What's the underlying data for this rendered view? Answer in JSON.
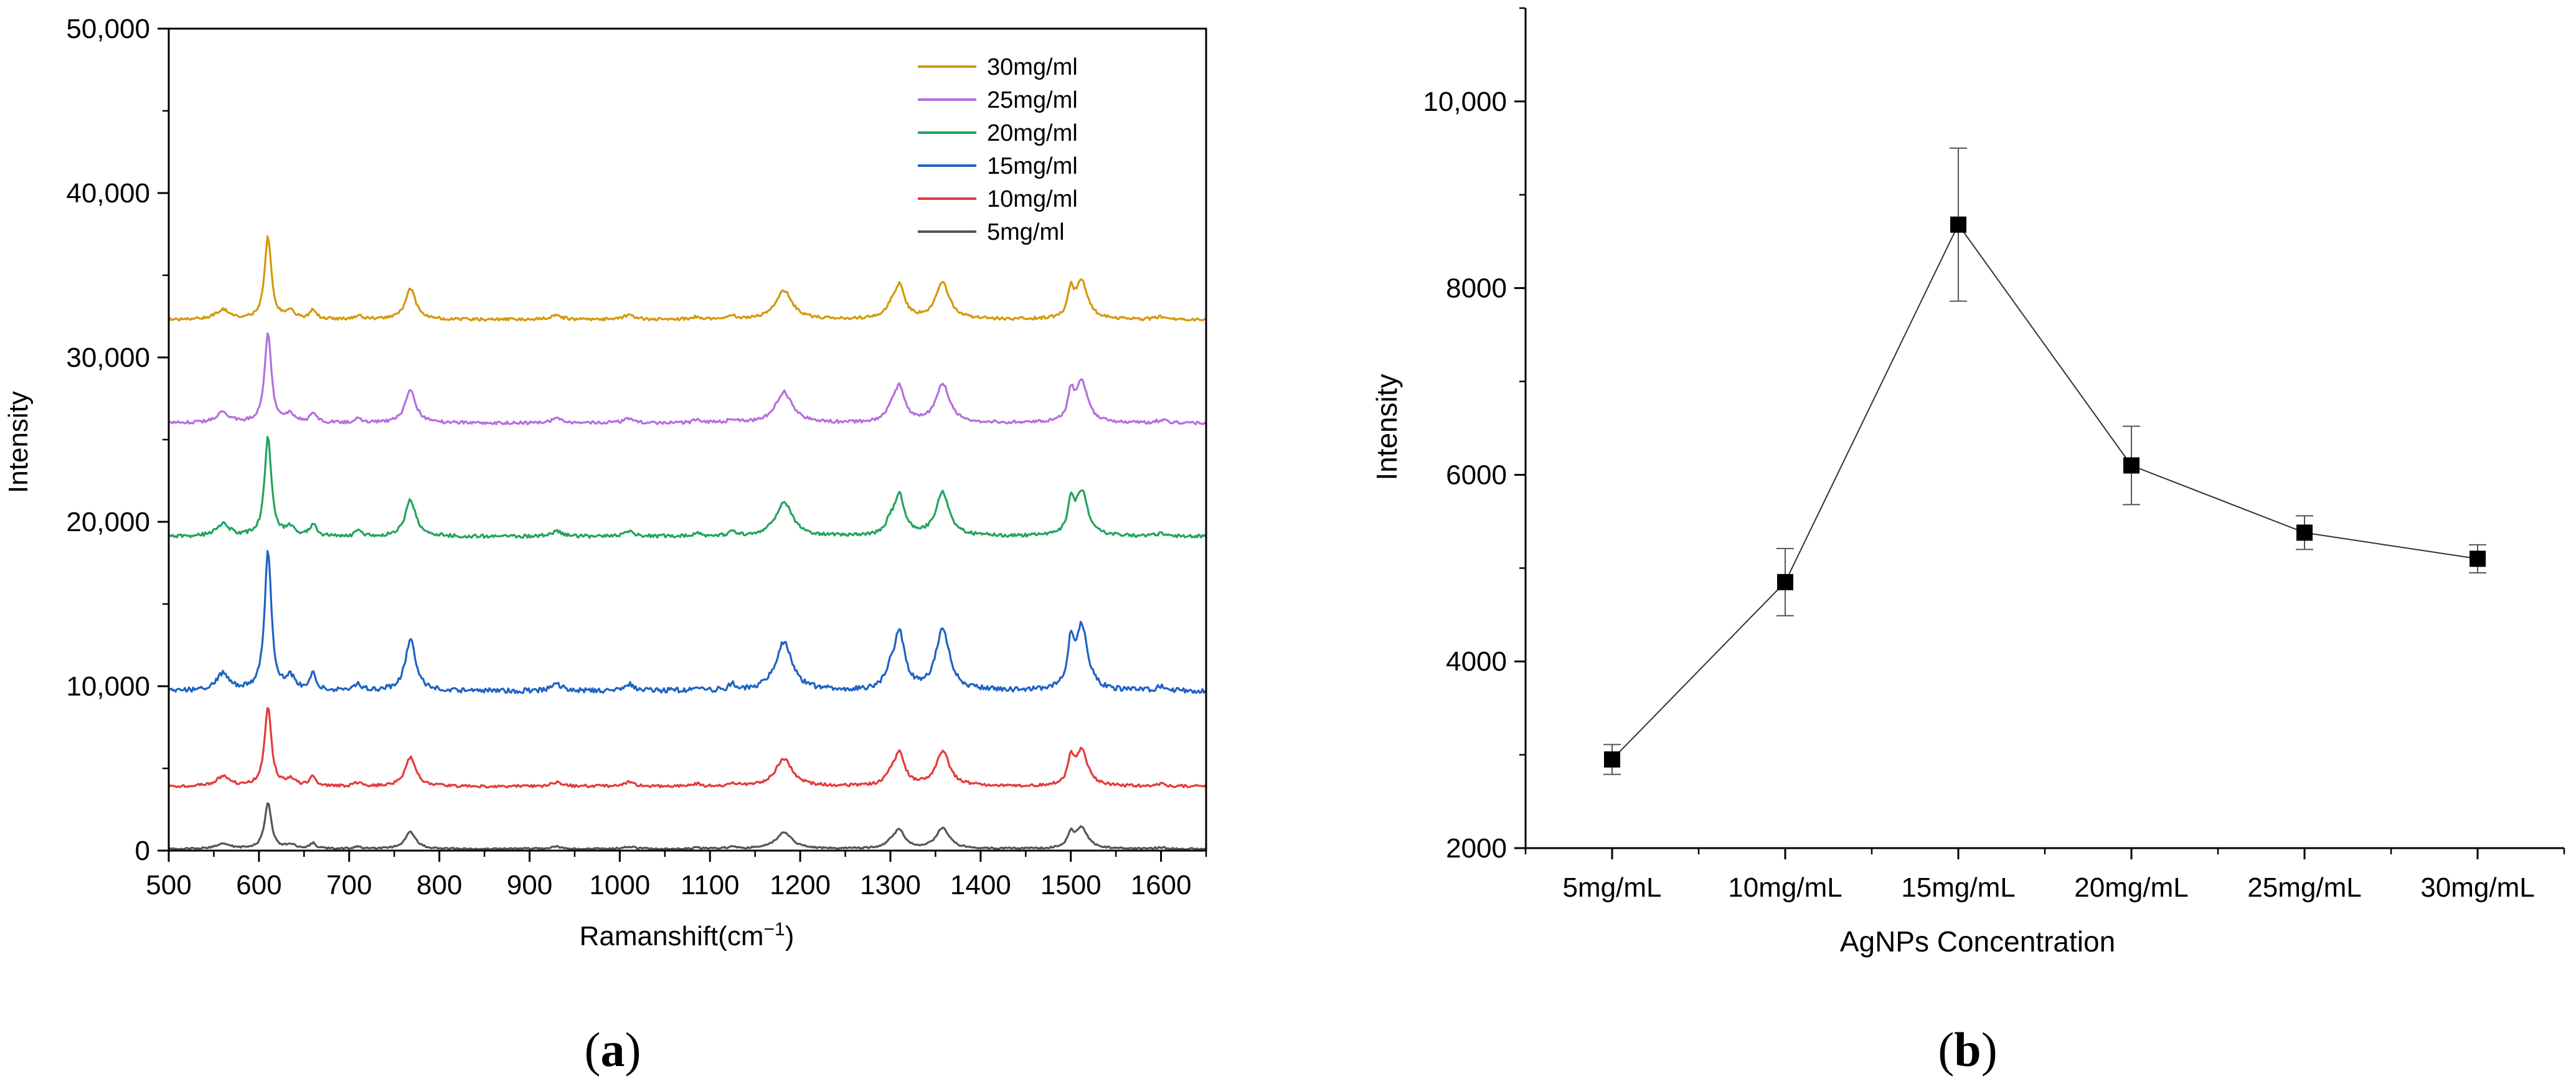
{
  "chart_data": [
    {
      "type": "line",
      "panel_label": "a",
      "title": "",
      "xlabel": "Ramanshift(cm",
      "xlabel_sup": "−1",
      "xlabel_close": ")",
      "ylabel": "Intensity",
      "xlim": [
        500,
        1650
      ],
      "ylim": [
        0,
        50000
      ],
      "x_ticks": [
        "500",
        "600",
        "700",
        "800",
        "900",
        "1000",
        "1100",
        "1200",
        "1300",
        "1400",
        "1500",
        "1600"
      ],
      "y_ticks": [
        "0",
        "10,000",
        "20,000",
        "30,000",
        "40,000",
        "50,000"
      ],
      "legend_position": "top-right",
      "peaks": [
        {
          "pos": 560,
          "w": 9,
          "h": 0.12
        },
        {
          "pos": 610,
          "w": 4.5,
          "h": 1.0
        },
        {
          "pos": 635,
          "w": 6,
          "h": 0.09
        },
        {
          "pos": 660,
          "w": 4,
          "h": 0.12
        },
        {
          "pos": 710,
          "w": 4,
          "h": 0.05
        },
        {
          "pos": 768,
          "w": 7,
          "h": 0.37
        },
        {
          "pos": 930,
          "w": 7,
          "h": 0.05
        },
        {
          "pos": 1010,
          "w": 7,
          "h": 0.05
        },
        {
          "pos": 1085,
          "w": 5,
          "h": 0.03
        },
        {
          "pos": 1125,
          "w": 5,
          "h": 0.04
        },
        {
          "pos": 1182,
          "w": 11,
          "h": 0.35
        },
        {
          "pos": 1300,
          "w": 6,
          "h": 0.1
        },
        {
          "pos": 1310,
          "w": 7,
          "h": 0.4
        },
        {
          "pos": 1358,
          "w": 9,
          "h": 0.44
        },
        {
          "pos": 1500,
          "w": 4,
          "h": 0.3
        },
        {
          "pos": 1512,
          "w": 8,
          "h": 0.45
        },
        {
          "pos": 1600,
          "w": 6,
          "h": 0.03
        }
      ],
      "series": [
        {
          "name": "30mg/ml",
          "color": "#D4990B",
          "baseline": 32300,
          "peak_height": 5000
        },
        {
          "name": "25mg/ml",
          "color": "#B56EE0",
          "baseline": 26000,
          "peak_height": 5400
        },
        {
          "name": "20mg/ml",
          "color": "#22A45D",
          "baseline": 19100,
          "peak_height": 6000
        },
        {
          "name": "15mg/ml",
          "color": "#1F62C4",
          "baseline": 9700,
          "peak_height": 8500
        },
        {
          "name": "10mg/ml",
          "color": "#E53A3A",
          "baseline": 3900,
          "peak_height": 4800
        },
        {
          "name": "5mg/ml",
          "color": "#555555",
          "baseline": 100,
          "peak_height": 2800
        }
      ]
    },
    {
      "type": "line",
      "panel_label": "b",
      "title": "",
      "xlabel": "AgNPs Concentration",
      "ylabel": "Intensity",
      "ylim": [
        2000,
        11000
      ],
      "categories": [
        "5mg/mL",
        "10mg/mL",
        "15mg/mL",
        "20mg/mL",
        "25mg/mL",
        "30mg/mL"
      ],
      "y_ticks": [
        "2000",
        "4000",
        "6000",
        "8000",
        "10,000"
      ],
      "values": [
        2950,
        4850,
        8680,
        6100,
        5380,
        5100
      ],
      "errors": [
        160,
        360,
        820,
        420,
        180,
        150
      ],
      "marker": "square",
      "line_color": "#333333"
    }
  ]
}
